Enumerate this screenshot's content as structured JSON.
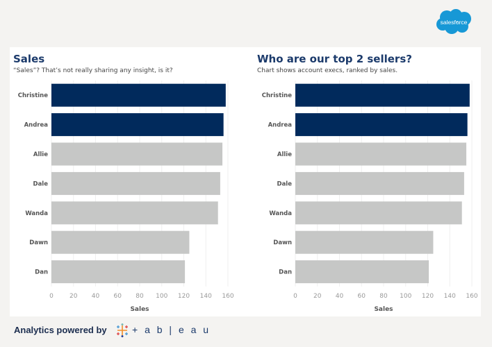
{
  "brand": {
    "logo_text": "salesforce",
    "logo_color": "#1798d6"
  },
  "footer": {
    "text": "Analytics powered by",
    "tableau_word": "+ a b | e a u"
  },
  "colors": {
    "highlight": "#012a5c",
    "default": "#c6c7c6",
    "title": "#1b3a6b"
  },
  "chart_data": [
    {
      "type": "bar",
      "orientation": "horizontal",
      "title": "Sales",
      "subtitle": "“Sales”? That’s not really sharing any insight, is it?",
      "categories": [
        "Christine",
        "Andrea",
        "Allie",
        "Dale",
        "Wanda",
        "Dawn",
        "Dan"
      ],
      "values": [
        158,
        156,
        155,
        153,
        151,
        125,
        121
      ],
      "highlighted": [
        "Christine",
        "Andrea"
      ],
      "xlabel": "Sales",
      "xlim": [
        0,
        160
      ],
      "xticks": [
        0,
        20,
        40,
        60,
        80,
        100,
        120,
        140,
        160
      ],
      "grid": true
    },
    {
      "type": "bar",
      "orientation": "horizontal",
      "title": "Who are our top 2 sellers?",
      "subtitle": "Chart shows account execs, ranked by sales.",
      "categories": [
        "Christine",
        "Andrea",
        "Allie",
        "Dale",
        "Wanda",
        "Dawn",
        "Dan"
      ],
      "values": [
        158,
        156,
        155,
        153,
        151,
        125,
        121
      ],
      "highlighted": [
        "Christine",
        "Andrea"
      ],
      "xlabel": "Sales",
      "xlim": [
        0,
        160
      ],
      "xticks": [
        0,
        20,
        40,
        60,
        80,
        100,
        120,
        140,
        160
      ],
      "grid": true
    }
  ]
}
